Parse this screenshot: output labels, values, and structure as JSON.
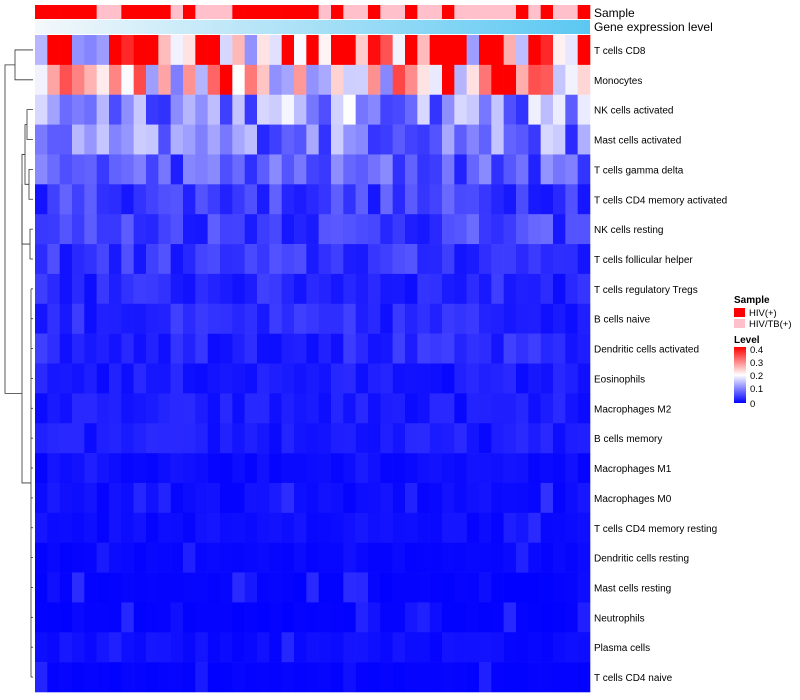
{
  "chart_data": {
    "type": "heatmap",
    "title": "",
    "annotation_tracks": [
      "Sample",
      "Gene expression level"
    ],
    "rows": [
      "T cells CD8",
      "Monocytes",
      "NK cells activated",
      "Mast cells activated",
      "T cells gamma delta",
      "T cells CD4 memory activated",
      "NK cells resting",
      "T cells follicular helper",
      "T cells regulatory  Tregs",
      "B cells naive",
      "Dendritic cells activated",
      "Eosinophils",
      "Macrophages M2",
      "B cells memory",
      "Macrophages M1",
      "Macrophages M0",
      "T cells CD4 memory resting",
      "Dendritic cells resting",
      "Mast cells resting",
      "Neutrophils",
      "Plasma cells",
      "T cells CD4 naive"
    ],
    "n_columns": 45,
    "sample_groups": [
      0,
      0,
      0,
      0,
      0,
      1,
      1,
      0,
      0,
      0,
      0,
      1,
      0,
      1,
      1,
      1,
      0,
      0,
      0,
      0,
      0,
      0,
      0,
      1,
      0,
      1,
      1,
      0,
      1,
      1,
      0,
      1,
      1,
      0,
      1,
      1,
      1,
      1,
      1,
      0,
      1,
      0,
      1,
      1,
      0
    ],
    "row_means": [
      0.33,
      0.26,
      0.12,
      0.1,
      0.07,
      0.05,
      0.05,
      0.04,
      0.03,
      0.03,
      0.03,
      0.02,
      0.02,
      0.02,
      0.01,
      0.01,
      0.01,
      0.005,
      0.003,
      0.002,
      0.01,
      0.003
    ],
    "legend": {
      "sample_title": "Sample",
      "sample_items": [
        {
          "label": "HIV(+)",
          "color": "#ff0000"
        },
        {
          "label": "HIV/TB(+)",
          "color": "#ffc0cb"
        }
      ],
      "level_title": "Level",
      "level_ticks": [
        "0.4",
        "0.3",
        "0.2",
        "0.1",
        "0"
      ],
      "level_range": [
        0,
        0.4
      ]
    },
    "colors": {
      "low": "#0000ff",
      "mid": "#ffffff",
      "high": "#ff0000",
      "expr_start": "#f4f8fb",
      "expr_end": "#5bc8f2"
    }
  }
}
